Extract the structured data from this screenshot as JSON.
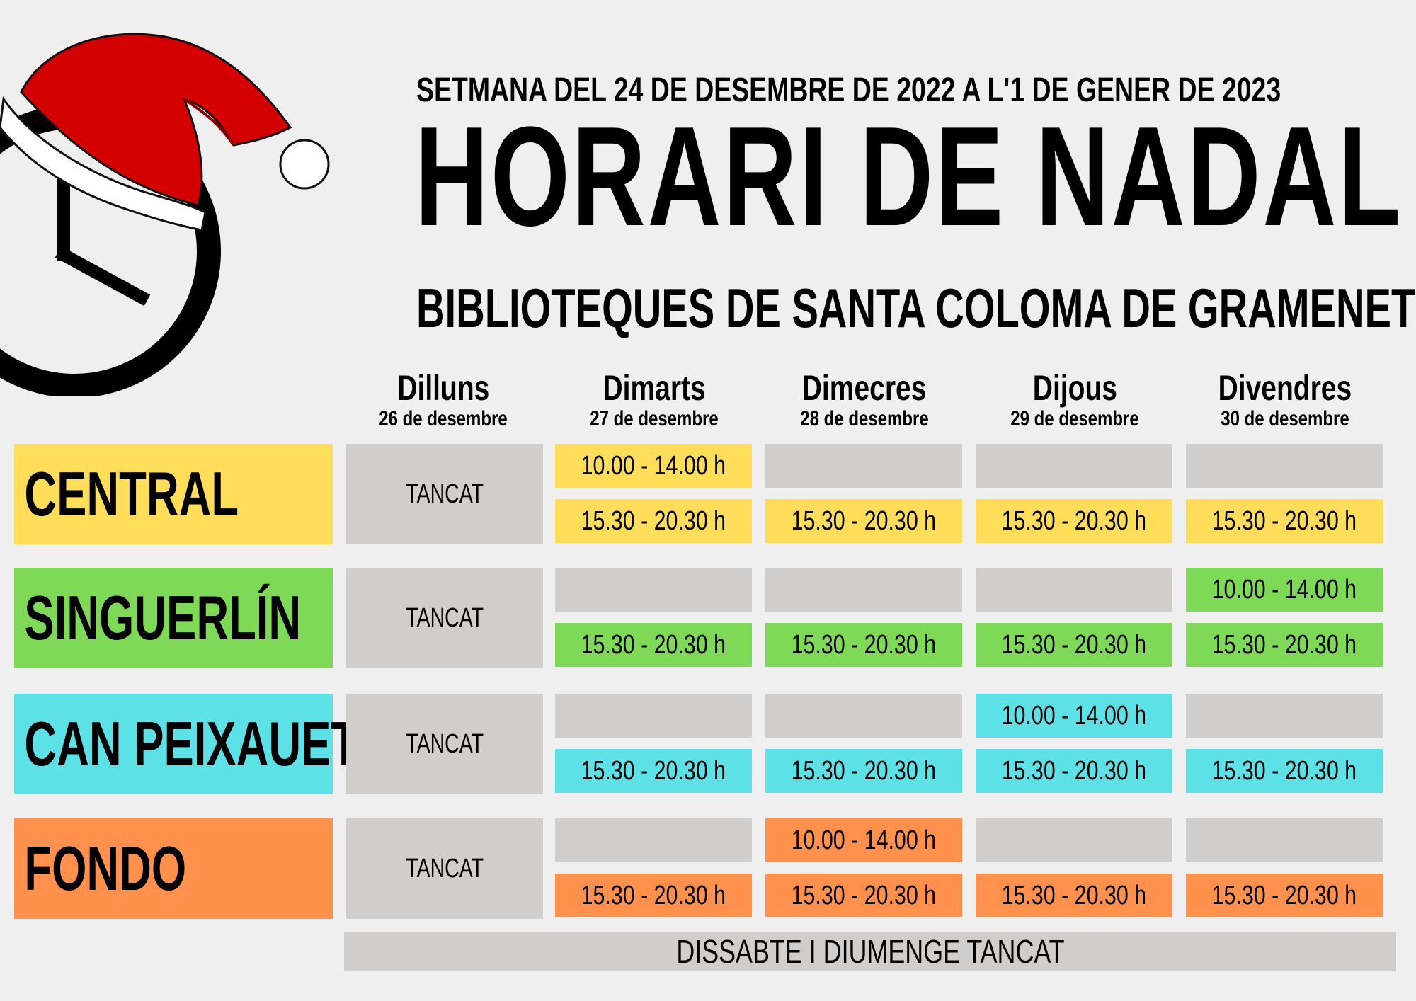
{
  "header": {
    "week": "SETMANA DEL 24 DE DESEMBRE DE 2022 A L'1 DE GENER DE 2023",
    "title": "HORARI DE NADAL",
    "subtitle": "BIBLIOTEQUES DE SANTA COLOMA DE GRAMENET"
  },
  "days": [
    {
      "name": "Dilluns",
      "date": "26 de desembre"
    },
    {
      "name": "Dimarts",
      "date": "27 de desembre"
    },
    {
      "name": "Dimecres",
      "date": "28 de desembre"
    },
    {
      "name": "Dijous",
      "date": "29 de desembre"
    },
    {
      "name": "Divendres",
      "date": "30 de desembre"
    }
  ],
  "libraries": [
    {
      "name": "CENTRAL",
      "color": "#fedd58",
      "monday": "TANCAT",
      "schedule": [
        {
          "morning": "10.00 - 14.00 h",
          "afternoon": "15.30 - 20.30 h"
        },
        {
          "morning": "",
          "afternoon": "15.30 - 20.30 h"
        },
        {
          "morning": "",
          "afternoon": "15.30 - 20.30 h"
        },
        {
          "morning": "",
          "afternoon": "15.30 - 20.30 h"
        }
      ]
    },
    {
      "name": "SINGUERLÍN",
      "color": "#7ed957",
      "monday": "TANCAT",
      "schedule": [
        {
          "morning": "",
          "afternoon": "15.30 - 20.30 h"
        },
        {
          "morning": "",
          "afternoon": "15.30 - 20.30 h"
        },
        {
          "morning": "",
          "afternoon": "15.30 - 20.30 h"
        },
        {
          "morning": "10.00 - 14.00 h",
          "afternoon": "15.30 - 20.30 h"
        }
      ]
    },
    {
      "name": "CAN PEIXAUET",
      "color": "#5ce1e6",
      "monday": "TANCAT",
      "schedule": [
        {
          "morning": "",
          "afternoon": "15.30 - 20.30 h"
        },
        {
          "morning": "",
          "afternoon": "15.30 - 20.30 h"
        },
        {
          "morning": "10.00 - 14.00 h",
          "afternoon": "15.30 - 20.30 h"
        },
        {
          "morning": "",
          "afternoon": "15.30 - 20.30 h"
        }
      ]
    },
    {
      "name": "FONDO",
      "color": "#ff914d",
      "monday": "TANCAT",
      "schedule": [
        {
          "morning": "",
          "afternoon": "15.30 - 20.30 h"
        },
        {
          "morning": "10.00 - 14.00 h",
          "afternoon": "15.30 - 20.30 h"
        },
        {
          "morning": "",
          "afternoon": "15.30 - 20.30 h"
        },
        {
          "morning": "",
          "afternoon": "15.30 - 20.30 h"
        }
      ]
    }
  ],
  "footer": {
    "weekend": "DISSABTE I DIUMENGE TANCAT"
  },
  "colors": {
    "background": "#efefef",
    "empty_cell": "#cfcecd",
    "hat_red": "#d40000"
  },
  "icons": [
    "clock-icon",
    "santa-hat-icon"
  ]
}
